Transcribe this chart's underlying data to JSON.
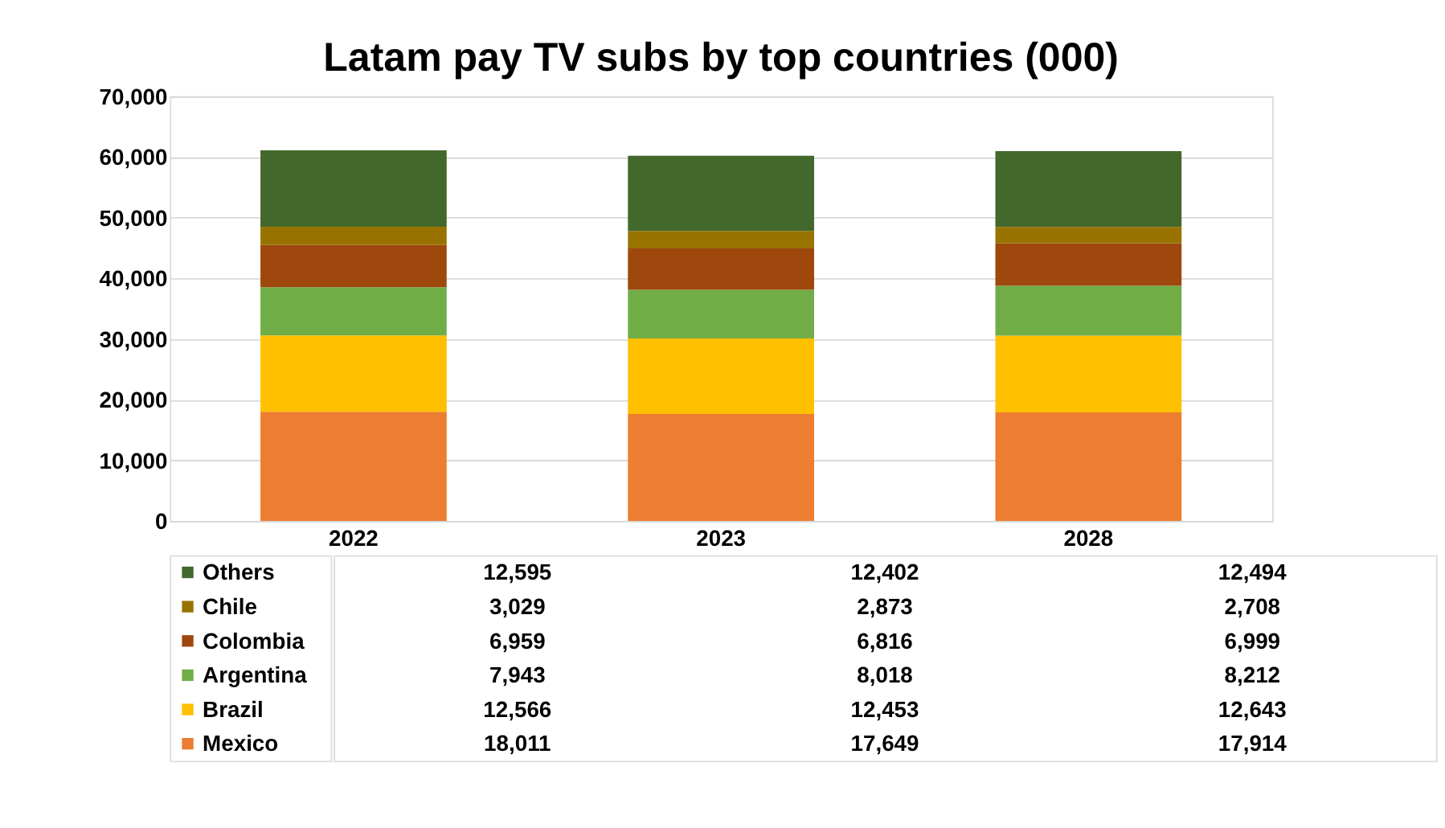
{
  "chart_data": {
    "type": "bar",
    "title": "Latam pay TV subs by top countries (000)",
    "categories": [
      "2022",
      "2023",
      "2028"
    ],
    "stacked": true,
    "series": [
      {
        "name": "Mexico",
        "color": "#ed7d31",
        "values": [
          18011,
          17649,
          17914
        ],
        "value_labels": [
          "18,011",
          "17,649",
          "17,914"
        ]
      },
      {
        "name": "Brazil",
        "color": "#ffc000",
        "values": [
          12566,
          12453,
          12643
        ],
        "value_labels": [
          "12,566",
          "12,453",
          "12,643"
        ]
      },
      {
        "name": "Argentina",
        "color": "#70ad47",
        "values": [
          7943,
          8018,
          8212
        ],
        "value_labels": [
          "7,943",
          "8,018",
          "8,212"
        ]
      },
      {
        "name": "Colombia",
        "color": "#9e480e",
        "values": [
          6959,
          6816,
          6999
        ],
        "value_labels": [
          "6,959",
          "6,816",
          "6,999"
        ]
      },
      {
        "name": "Chile",
        "color": "#997300",
        "values": [
          3029,
          2873,
          2708
        ],
        "value_labels": [
          "3,029",
          "2,873",
          "2,708"
        ]
      },
      {
        "name": "Others",
        "color": "#43682b",
        "values": [
          12595,
          12402,
          12494
        ],
        "value_labels": [
          "12,595",
          "12,402",
          "12,494"
        ]
      }
    ],
    "ylim": [
      0,
      70000
    ],
    "yticks": [
      0,
      {
        "value": 10000,
        "label": "10,000"
      },
      {
        "value": 20000,
        "label": "20,000"
      },
      {
        "value": 30000,
        "label": "30,000"
      },
      {
        "value": 40000,
        "label": "40,000"
      },
      {
        "value": 50000,
        "label": "50,000"
      },
      {
        "value": 60000,
        "label": "60,000"
      },
      {
        "value": 70000,
        "label": "70,000"
      }
    ],
    "grid": "y",
    "legend": "bottom"
  }
}
